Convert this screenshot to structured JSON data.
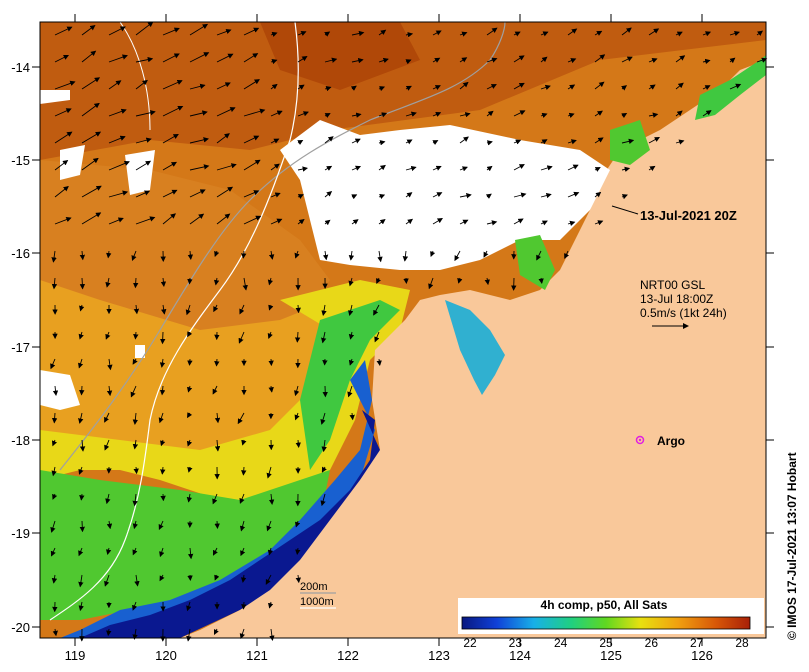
{
  "map": {
    "date_label": "13-Jul-2021 20Z",
    "current_legend": {
      "product": "NRT00 GSL",
      "time": "13-Jul 18:00Z",
      "scale": "0.5m/s (1kt 24h)"
    },
    "argo_label": "Argo",
    "isobaths": [
      "200m",
      "1000m"
    ],
    "colorbar": {
      "title": "4h comp, p50, All Sats",
      "ticks": [
        "22",
        "23",
        "24",
        "25",
        "26",
        "27",
        "28"
      ]
    },
    "credit": "© IMOS 17-Jul-2021 13:07 Hobart",
    "lon_ticks": [
      "119",
      "120",
      "121",
      "122",
      "123",
      "124",
      "125",
      "126"
    ],
    "lat_ticks": [
      "-14",
      "-15",
      "-16",
      "-17",
      "-18",
      "-19",
      "-20"
    ],
    "colors": {
      "land": "#f9c89a",
      "cloud": "#ffffff",
      "warm": "#cc6a10",
      "hot": "#b84808",
      "mid": "#f0a020",
      "yellow": "#f2e010",
      "green": "#40c830",
      "cool": "#20a8c8",
      "cold": "#1830b8",
      "coldest": "#0a1890",
      "argo": "#e020e0"
    }
  }
}
